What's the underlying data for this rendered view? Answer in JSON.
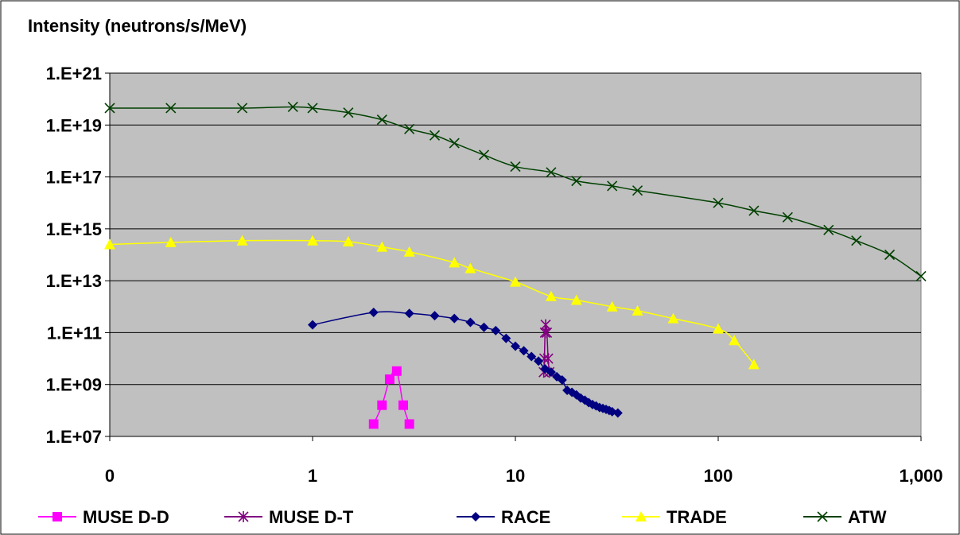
{
  "chart_data": {
    "type": "line",
    "title": "",
    "ylabel": "Intensity (neutrons/s/MeV)",
    "xlabel": "",
    "x_scale": "log",
    "y_scale": "log",
    "xlim": [
      0.1,
      1000
    ],
    "ylim": [
      10000000.0,
      1e+21
    ],
    "x_ticks": [
      {
        "value": 0.1,
        "label": "0"
      },
      {
        "value": 1,
        "label": "1"
      },
      {
        "value": 10,
        "label": "10"
      },
      {
        "value": 100,
        "label": "100"
      },
      {
        "value": 1000,
        "label": "1,000"
      }
    ],
    "y_ticks": [
      {
        "value": 10000000.0,
        "label": "1.E+07"
      },
      {
        "value": 1000000000.0,
        "label": "1.E+09"
      },
      {
        "value": 100000000000.0,
        "label": "1.E+11"
      },
      {
        "value": 10000000000000.0,
        "label": "1.E+13"
      },
      {
        "value": 1000000000000000.0,
        "label": "1.E+15"
      },
      {
        "value": 1e+17,
        "label": "1.E+17"
      },
      {
        "value": 1e+19,
        "label": "1.E+19"
      },
      {
        "value": 1e+21,
        "label": "1.E+21"
      }
    ],
    "grid": "horizontal",
    "plot_background": "#c0c0c0",
    "legend_position": "bottom",
    "series": [
      {
        "name": "MUSE D-D",
        "color": "#ff00ff",
        "marker": "square",
        "points": [
          [
            2.0,
            30000000.0
          ],
          [
            2.2,
            160000000.0
          ],
          [
            2.4,
            1600000000.0
          ],
          [
            2.6,
            3300000000.0
          ],
          [
            2.8,
            160000000.0
          ],
          [
            3.0,
            30000000.0
          ]
        ]
      },
      {
        "name": "MUSE D-T",
        "color": "#800080",
        "marker": "star",
        "points": [
          [
            13.8,
            3000000000.0
          ],
          [
            13.9,
            10000000000.0
          ],
          [
            14.0,
            100000000000.0
          ],
          [
            14.1,
            200000000000.0
          ],
          [
            14.3,
            100000000000.0
          ],
          [
            14.5,
            10000000000.0
          ],
          [
            14.7,
            3000000000.0
          ]
        ]
      },
      {
        "name": "RACE",
        "color": "#000080",
        "marker": "diamond",
        "points": [
          [
            1,
            200000000000.0
          ],
          [
            2,
            600000000000.0
          ],
          [
            3,
            550000000000.0
          ],
          [
            4,
            450000000000.0
          ],
          [
            5,
            350000000000.0
          ],
          [
            6,
            250000000000.0
          ],
          [
            7,
            160000000000.0
          ],
          [
            8,
            120000000000.0
          ],
          [
            9,
            60000000000.0
          ],
          [
            10,
            30000000000.0
          ],
          [
            11,
            20000000000.0
          ],
          [
            12,
            12000000000.0
          ],
          [
            13,
            8000000000.0
          ],
          [
            14,
            4000000000.0
          ],
          [
            15,
            3000000000.0
          ],
          [
            16,
            2000000000.0
          ],
          [
            17,
            1500000000.0
          ],
          [
            18,
            600000000.0
          ],
          [
            19,
            500000000.0
          ],
          [
            20,
            400000000.0
          ],
          [
            21,
            300000000.0
          ],
          [
            22,
            250000000.0
          ],
          [
            23,
            200000000.0
          ],
          [
            24,
            170000000.0
          ],
          [
            25,
            150000000.0
          ],
          [
            26,
            130000000.0
          ],
          [
            27,
            120000000.0
          ],
          [
            28,
            110000000.0
          ],
          [
            29,
            100000000.0
          ],
          [
            30,
            90000000.0
          ],
          [
            32,
            80000000.0
          ]
        ]
      },
      {
        "name": "TRADE",
        "color": "#ffff00",
        "marker": "triangle",
        "points": [
          [
            0.1,
            250000000000000.0
          ],
          [
            0.2,
            300000000000000.0
          ],
          [
            0.45,
            350000000000000.0
          ],
          [
            1,
            350000000000000.0
          ],
          [
            1.5,
            320000000000000.0
          ],
          [
            2.2,
            200000000000000.0
          ],
          [
            3,
            130000000000000.0
          ],
          [
            5,
            50000000000000.0
          ],
          [
            6,
            30000000000000.0
          ],
          [
            10,
            9000000000000.0
          ],
          [
            15,
            2500000000000.0
          ],
          [
            20,
            1800000000000.0
          ],
          [
            30,
            1000000000000.0
          ],
          [
            40,
            700000000000.0
          ],
          [
            60,
            350000000000.0
          ],
          [
            100,
            140000000000.0
          ],
          [
            120,
            50000000000.0
          ],
          [
            150,
            6000000000.0
          ]
        ]
      },
      {
        "name": "ATW",
        "color": "#004000",
        "marker": "x",
        "points": [
          [
            0.1,
            4.5e+19
          ],
          [
            0.2,
            4.5e+19
          ],
          [
            0.45,
            4.5e+19
          ],
          [
            0.8,
            5e+19
          ],
          [
            1,
            4.5e+19
          ],
          [
            1.5,
            3e+19
          ],
          [
            2.2,
            1.6e+19
          ],
          [
            3,
            7e+18
          ],
          [
            4,
            4e+18
          ],
          [
            5,
            2e+18
          ],
          [
            7,
            7e+17
          ],
          [
            10,
            2.5e+17
          ],
          [
            15,
            1.5e+17
          ],
          [
            20,
            7e+16
          ],
          [
            30,
            4.5e+16
          ],
          [
            40,
            3e+16
          ],
          [
            100,
            1e+16
          ],
          [
            150,
            5000000000000000.0
          ],
          [
            220,
            2800000000000000.0
          ],
          [
            350,
            900000000000000.0
          ],
          [
            480,
            350000000000000.0
          ],
          [
            700,
            100000000000000.0
          ],
          [
            1000,
            15000000000000.0
          ]
        ]
      }
    ]
  }
}
